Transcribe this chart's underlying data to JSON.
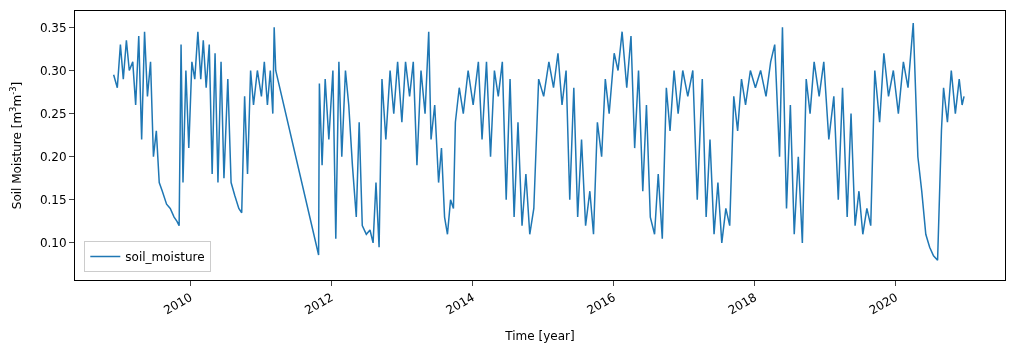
{
  "chart_data": {
    "type": "line",
    "xlabel": "Time [year]",
    "ylabel": "Soil Moisture [m$^{3}$m$^{-3}$]",
    "xlim": [
      "2008-05-15",
      "2021-07-20"
    ],
    "ylim": [
      0.057,
      0.369
    ],
    "xticks": [
      {
        "value": "2010-01-01",
        "label": "2010"
      },
      {
        "value": "2012-01-01",
        "label": "2012"
      },
      {
        "value": "2014-01-01",
        "label": "2014"
      },
      {
        "value": "2016-01-01",
        "label": "2016"
      },
      {
        "value": "2018-01-01",
        "label": "2018"
      },
      {
        "value": "2020-01-01",
        "label": "2020"
      }
    ],
    "yticks": [
      {
        "value": 0.1,
        "label": "0.10"
      },
      {
        "value": 0.15,
        "label": "0.15"
      },
      {
        "value": 0.2,
        "label": "0.20"
      },
      {
        "value": 0.25,
        "label": "0.25"
      },
      {
        "value": 0.3,
        "label": "0.30"
      },
      {
        "value": 0.35,
        "label": "0.35"
      }
    ],
    "legend": "bottom left",
    "marker": "none",
    "line_style": "solid",
    "series": [
      {
        "name": "soil_moisture",
        "color": "#1f77b4",
        "x": [
          "2008-12-01",
          "2008-12-20",
          "2009-01-05",
          "2009-01-20",
          "2009-02-05",
          "2009-02-20",
          "2009-03-10",
          "2009-03-25",
          "2009-04-10",
          "2009-04-25",
          "2009-05-10",
          "2009-05-25",
          "2009-06-10",
          "2009-06-25",
          "2009-07-10",
          "2009-07-25",
          "2009-08-10",
          "2009-09-01",
          "2009-09-20",
          "2009-10-10",
          "2009-10-25",
          "2009-11-05",
          "2009-11-15",
          "2009-11-25",
          "2009-12-10",
          "2009-12-25",
          "2010-01-10",
          "2010-01-25",
          "2010-02-10",
          "2010-02-25",
          "2010-03-10",
          "2010-03-25",
          "2010-04-10",
          "2010-04-25",
          "2010-05-10",
          "2010-05-25",
          "2010-06-10",
          "2010-06-25",
          "2010-07-15",
          "2010-08-01",
          "2010-08-20",
          "2010-09-10",
          "2010-09-25",
          "2010-10-10",
          "2010-10-25",
          "2010-11-10",
          "2010-11-25",
          "2010-12-15",
          "2011-01-05",
          "2011-01-20",
          "2011-02-05",
          "2011-02-20",
          "2011-03-05",
          "2011-03-12",
          "2011-03-20",
          "2011-10-28",
          "2011-11-01",
          "2011-11-15",
          "2011-12-01",
          "2011-12-20",
          "2012-01-10",
          "2012-01-25",
          "2012-02-10",
          "2012-02-25",
          "2012-03-15",
          "2012-04-01",
          "2012-04-20",
          "2012-05-10",
          "2012-05-25",
          "2012-06-10",
          "2012-07-01",
          "2012-07-20",
          "2012-08-05",
          "2012-08-20",
          "2012-09-05",
          "2012-09-20",
          "2012-10-10",
          "2012-11-01",
          "2012-11-20",
          "2012-12-10",
          "2013-01-01",
          "2013-01-20",
          "2013-02-10",
          "2013-03-01",
          "2013-03-20",
          "2013-04-10",
          "2013-05-01",
          "2013-05-20",
          "2013-06-01",
          "2013-06-20",
          "2013-07-10",
          "2013-07-25",
          "2013-08-10",
          "2013-08-25",
          "2013-09-10",
          "2013-09-25",
          "2013-10-05",
          "2013-10-25",
          "2013-11-15",
          "2013-12-10",
          "2014-01-05",
          "2014-02-01",
          "2014-02-20",
          "2014-03-15",
          "2014-04-05",
          "2014-04-25",
          "2014-05-15",
          "2014-06-05",
          "2014-06-25",
          "2014-07-15",
          "2014-08-05",
          "2014-08-25",
          "2014-09-15",
          "2014-10-05",
          "2014-10-25",
          "2014-11-15",
          "2014-12-10",
          "2015-01-05",
          "2015-02-01",
          "2015-02-25",
          "2015-03-20",
          "2015-04-10",
          "2015-05-01",
          "2015-05-20",
          "2015-06-10",
          "2015-06-30",
          "2015-07-20",
          "2015-08-10",
          "2015-09-01",
          "2015-09-20",
          "2015-10-10",
          "2015-11-01",
          "2015-11-20",
          "2015-12-10",
          "2016-01-05",
          "2016-01-25",
          "2016-02-15",
          "2016-03-10",
          "2016-04-01",
          "2016-04-20",
          "2016-05-10",
          "2016-06-01",
          "2016-06-20",
          "2016-07-10",
          "2016-08-01",
          "2016-08-20",
          "2016-09-10",
          "2016-10-01",
          "2016-10-20",
          "2016-11-10",
          "2016-12-01",
          "2016-12-25",
          "2017-01-20",
          "2017-02-15",
          "2017-03-10",
          "2017-04-05",
          "2017-04-25",
          "2017-05-15",
          "2017-06-05",
          "2017-06-25",
          "2017-07-15",
          "2017-08-05",
          "2017-08-25",
          "2017-09-15",
          "2017-10-05",
          "2017-10-25",
          "2017-11-15",
          "2017-12-10",
          "2018-01-05",
          "2018-02-01",
          "2018-03-01",
          "2018-03-25",
          "2018-04-15",
          "2018-05-10",
          "2018-05-25",
          "2018-06-15",
          "2018-07-05",
          "2018-07-25",
          "2018-08-15",
          "2018-09-05",
          "2018-09-25",
          "2018-10-15",
          "2018-11-05",
          "2018-12-01",
          "2018-12-25",
          "2019-01-20",
          "2019-02-15",
          "2019-03-10",
          "2019-04-01",
          "2019-04-25",
          "2019-05-15",
          "2019-06-05",
          "2019-06-25",
          "2019-07-15",
          "2019-08-05",
          "2019-08-25",
          "2019-09-15",
          "2019-10-10",
          "2019-11-01",
          "2019-11-25",
          "2019-12-20",
          "2020-01-15",
          "2020-02-10",
          "2020-03-05",
          "2020-04-01",
          "2020-04-25",
          "2020-05-15",
          "2020-06-05",
          "2020-06-25",
          "2020-07-15",
          "2020-08-05",
          "2020-08-25",
          "2020-09-05",
          "2020-09-25",
          "2020-10-15",
          "2020-11-05",
          "2020-11-25",
          "2020-12-10",
          "2020-12-20"
        ],
        "values": [
          0.295,
          0.28,
          0.33,
          0.29,
          0.335,
          0.3,
          0.31,
          0.26,
          0.34,
          0.22,
          0.345,
          0.27,
          0.31,
          0.2,
          0.23,
          0.17,
          0.16,
          0.145,
          0.14,
          0.13,
          0.125,
          0.12,
          0.33,
          0.17,
          0.3,
          0.21,
          0.31,
          0.29,
          0.345,
          0.29,
          0.335,
          0.28,
          0.33,
          0.18,
          0.32,
          0.17,
          0.31,
          0.175,
          0.29,
          0.17,
          0.155,
          0.14,
          0.135,
          0.27,
          0.18,
          0.3,
          0.26,
          0.3,
          0.27,
          0.31,
          0.26,
          0.3,
          0.25,
          0.35,
          0.3,
          0.086,
          0.285,
          0.19,
          0.29,
          0.22,
          0.3,
          0.105,
          0.31,
          0.2,
          0.3,
          0.26,
          0.19,
          0.13,
          0.24,
          0.12,
          0.11,
          0.115,
          0.1,
          0.17,
          0.095,
          0.29,
          0.22,
          0.3,
          0.25,
          0.31,
          0.24,
          0.31,
          0.27,
          0.31,
          0.19,
          0.3,
          0.25,
          0.345,
          0.22,
          0.26,
          0.17,
          0.21,
          0.13,
          0.11,
          0.15,
          0.14,
          0.24,
          0.28,
          0.25,
          0.3,
          0.26,
          0.31,
          0.22,
          0.31,
          0.2,
          0.3,
          0.27,
          0.31,
          0.15,
          0.29,
          0.13,
          0.24,
          0.12,
          0.18,
          0.11,
          0.14,
          0.29,
          0.27,
          0.31,
          0.28,
          0.32,
          0.26,
          0.3,
          0.15,
          0.28,
          0.13,
          0.22,
          0.12,
          0.16,
          0.11,
          0.24,
          0.2,
          0.29,
          0.25,
          0.32,
          0.3,
          0.345,
          0.28,
          0.34,
          0.21,
          0.3,
          0.16,
          0.26,
          0.13,
          0.11,
          0.18,
          0.105,
          0.28,
          0.23,
          0.3,
          0.25,
          0.3,
          0.27,
          0.3,
          0.15,
          0.29,
          0.13,
          0.22,
          0.11,
          0.17,
          0.1,
          0.14,
          0.12,
          0.27,
          0.23,
          0.29,
          0.26,
          0.3,
          0.28,
          0.3,
          0.27,
          0.31,
          0.33,
          0.2,
          0.35,
          0.14,
          0.26,
          0.11,
          0.2,
          0.1,
          0.29,
          0.25,
          0.31,
          0.27,
          0.31,
          0.22,
          0.27,
          0.15,
          0.28,
          0.13,
          0.25,
          0.12,
          0.16,
          0.11,
          0.14,
          0.12,
          0.3,
          0.24,
          0.32,
          0.27,
          0.3,
          0.25,
          0.31,
          0.28,
          0.355,
          0.2,
          0.16,
          0.11,
          0.095,
          0.085,
          0.08,
          0.23,
          0.28,
          0.24,
          0.3,
          0.25,
          0.29,
          0.26,
          0.27
        ]
      }
    ]
  }
}
